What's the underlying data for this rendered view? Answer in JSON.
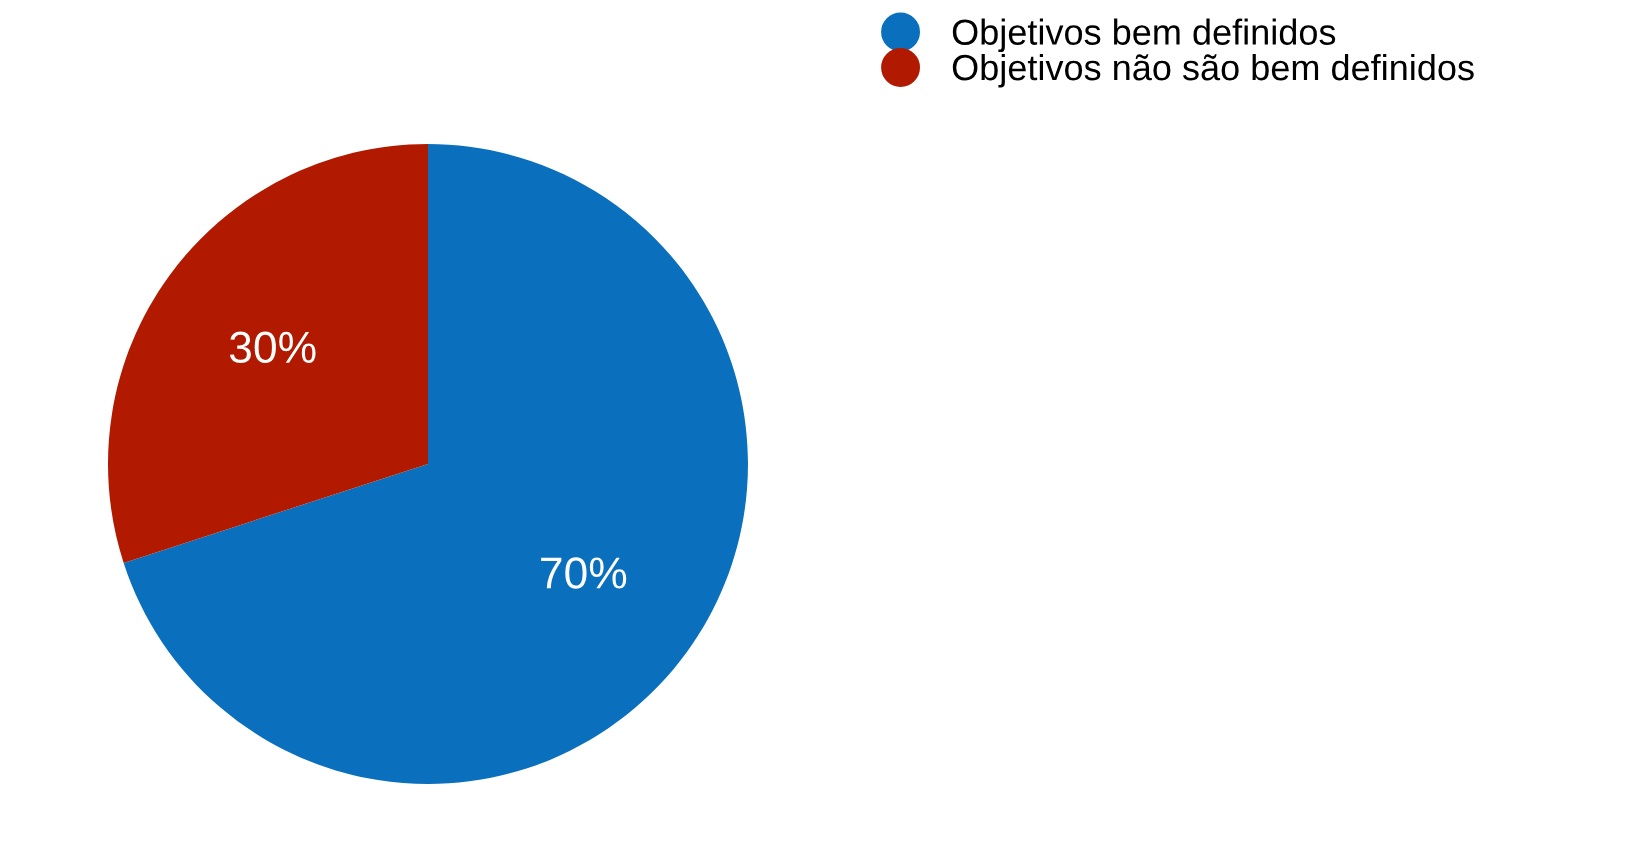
{
  "chart_data": {
    "type": "pie",
    "categories": [
      "Objetivos bem definidos",
      "Objetivos não são bem definidos"
    ],
    "values": [
      70,
      30
    ],
    "colors": [
      "#0a70bd",
      "#b21a00"
    ],
    "value_labels": [
      "70%",
      "30%"
    ],
    "legend": "top right"
  }
}
